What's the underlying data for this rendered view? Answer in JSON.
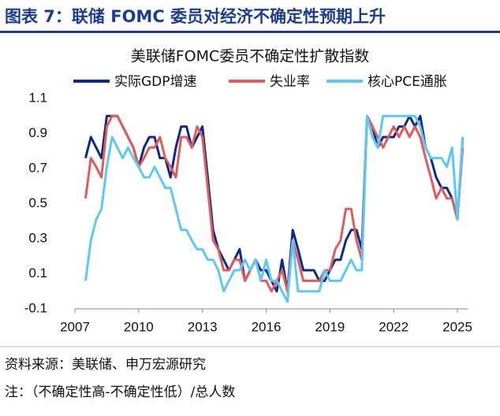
{
  "header": {
    "title": "图表 7：联储 FOMC 委员对经济不确定性预期上升"
  },
  "chart_data": {
    "type": "line",
    "title": "美联储FOMC委员不确定性扩散指数",
    "x": [
      2007.5,
      2007.75,
      2008,
      2008.25,
      2008.5,
      2008.75,
      2009,
      2009.25,
      2009.5,
      2009.75,
      2010,
      2010.25,
      2010.5,
      2010.75,
      2011,
      2011.25,
      2011.5,
      2011.75,
      2012,
      2012.25,
      2012.5,
      2012.75,
      2013,
      2013.25,
      2013.5,
      2013.75,
      2014,
      2014.25,
      2014.5,
      2014.75,
      2015,
      2015.25,
      2015.5,
      2015.75,
      2016,
      2016.25,
      2016.5,
      2016.75,
      2017,
      2017.25,
      2017.5,
      2017.75,
      2018,
      2018.25,
      2018.5,
      2018.75,
      2019,
      2019.25,
      2019.5,
      2019.75,
      2020,
      2020.25,
      2020.5,
      2020.75,
      2021,
      2021.25,
      2021.5,
      2021.75,
      2022,
      2022.25,
      2022.5,
      2022.75,
      2023,
      2023.25,
      2023.5,
      2023.75,
      2024,
      2024.25,
      2024.5,
      2024.75,
      2025,
      2025.25
    ],
    "series": [
      {
        "name": "实际GDP增速",
        "color": "#0e2a86",
        "values": [
          0.76,
          0.88,
          0.82,
          0.76,
          1.0,
          1.0,
          1.0,
          0.94,
          0.88,
          0.82,
          0.71,
          0.82,
          0.88,
          0.88,
          0.76,
          0.76,
          0.65,
          0.82,
          0.94,
          0.94,
          0.82,
          0.88,
          0.94,
          0.65,
          0.35,
          0.24,
          0.18,
          0.12,
          0.18,
          0.24,
          0.06,
          0.12,
          0.18,
          0.12,
          0.12,
          0.06,
          0.0,
          0.18,
          0.0,
          0.35,
          0.24,
          0.12,
          0.12,
          0.12,
          0.06,
          0.06,
          0.12,
          0.18,
          0.18,
          0.29,
          0.35,
          0.35,
          0.24,
          1.0,
          0.94,
          0.82,
          0.88,
          0.88,
          0.88,
          0.94,
          0.94,
          1.0,
          0.94,
          1.0,
          0.82,
          0.76,
          0.65,
          0.59,
          0.59,
          0.53,
          0.41,
          0.88
        ]
      },
      {
        "name": "失业率",
        "color": "#e05b5b",
        "values": [
          0.53,
          0.76,
          0.71,
          0.65,
          0.94,
          1.0,
          1.0,
          0.94,
          0.88,
          0.82,
          0.71,
          0.76,
          0.82,
          0.82,
          0.88,
          0.76,
          0.71,
          0.65,
          0.88,
          0.88,
          0.82,
          0.94,
          0.88,
          0.59,
          0.29,
          0.24,
          0.12,
          0.12,
          0.18,
          0.18,
          0.06,
          0.12,
          0.18,
          0.06,
          0.06,
          0.0,
          0.06,
          0.12,
          0.0,
          0.29,
          0.18,
          0.06,
          0.06,
          0.06,
          0.06,
          0.12,
          0.12,
          0.24,
          0.29,
          0.47,
          0.47,
          0.29,
          0.18,
          1.0,
          0.94,
          0.88,
          0.82,
          0.88,
          0.94,
          0.88,
          0.94,
          0.88,
          0.94,
          0.88,
          0.76,
          0.65,
          0.53,
          0.59,
          0.53,
          0.53,
          0.41,
          0.82
        ]
      },
      {
        "name": "核心PCE通胀",
        "color": "#5cc9f5",
        "values": [
          0.06,
          0.29,
          0.41,
          0.47,
          0.71,
          0.88,
          0.82,
          0.76,
          0.82,
          0.76,
          0.71,
          0.65,
          0.65,
          0.71,
          0.65,
          0.59,
          0.59,
          0.47,
          0.35,
          0.35,
          0.29,
          0.24,
          0.24,
          0.18,
          0.18,
          0.12,
          0.0,
          0.06,
          0.12,
          0.12,
          0.18,
          0.12,
          0.18,
          0.06,
          0.18,
          0.06,
          0.06,
          0.0,
          -0.06,
          0.29,
          0.0,
          0.0,
          0.0,
          0.0,
          0.0,
          0.12,
          0.06,
          0.06,
          0.06,
          0.12,
          0.18,
          0.12,
          0.12,
          1.0,
          0.88,
          0.82,
          1.0,
          1.0,
          1.0,
          1.0,
          1.0,
          1.0,
          1.0,
          0.94,
          0.82,
          0.76,
          0.76,
          0.76,
          0.71,
          0.82,
          0.41,
          0.88
        ]
      }
    ],
    "xlim": [
      2007,
      2025.5
    ],
    "xticks": [
      2007,
      2010,
      2013,
      2016,
      2019,
      2022,
      2025
    ],
    "ylim": [
      -0.1,
      1.1
    ],
    "yticks": [
      -0.1,
      0.1,
      0.3,
      0.5,
      0.7,
      0.9,
      1.1
    ],
    "legend": "top"
  },
  "footer": {
    "source": "资料来源：美联储、申万宏源研究",
    "note": "注：（不确定性高-不确定性低）/总人数"
  }
}
